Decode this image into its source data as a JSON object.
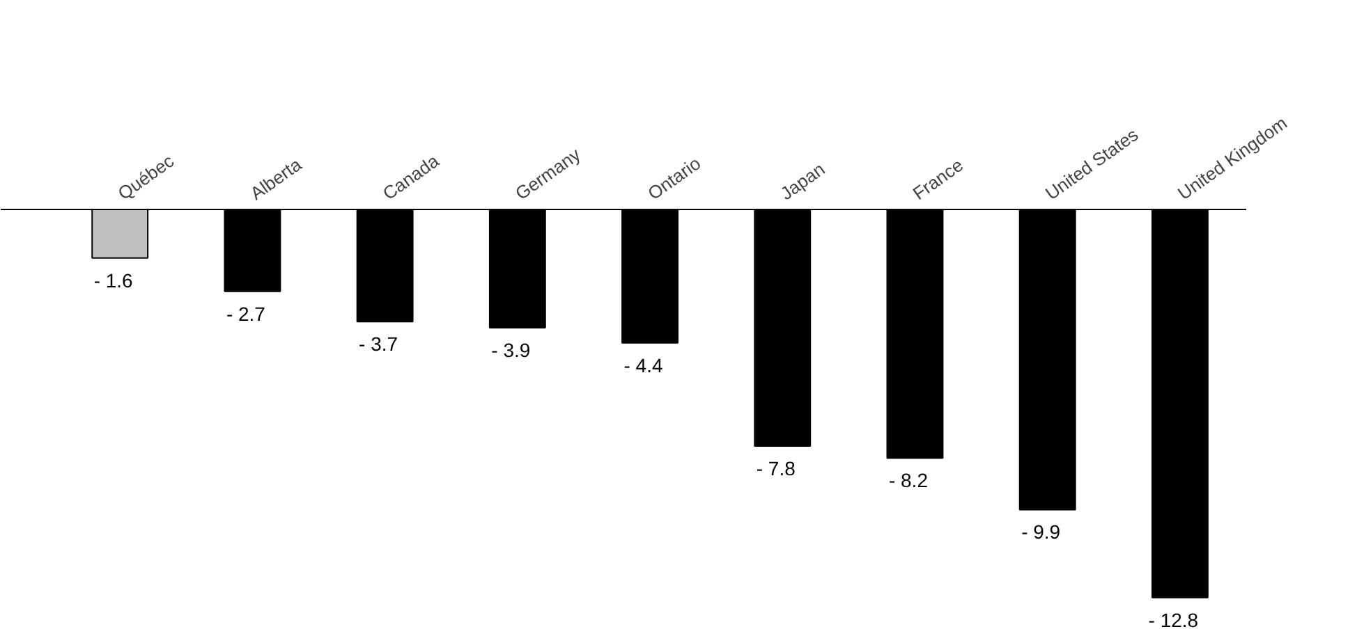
{
  "chart_data": {
    "type": "bar",
    "categories": [
      "Québec",
      "Alberta",
      "Canada",
      "Germany",
      "Ontario",
      "Japan",
      "France",
      "United States",
      "United Kingdom"
    ],
    "values": [
      -1.6,
      -2.7,
      -3.7,
      -3.9,
      -4.4,
      -7.8,
      -8.2,
      -9.9,
      -12.8
    ],
    "colors": [
      "#c0c0c0",
      "#000000",
      "#000000",
      "#000000",
      "#000000",
      "#000000",
      "#000000",
      "#000000",
      "#000000"
    ],
    "value_labels": [
      "- 1.6",
      "- 2.7",
      "- 3.7",
      "- 3.9",
      "- 4.4",
      "- 7.8",
      "- 8.2",
      "- 9.9",
      "- 12.8"
    ]
  }
}
